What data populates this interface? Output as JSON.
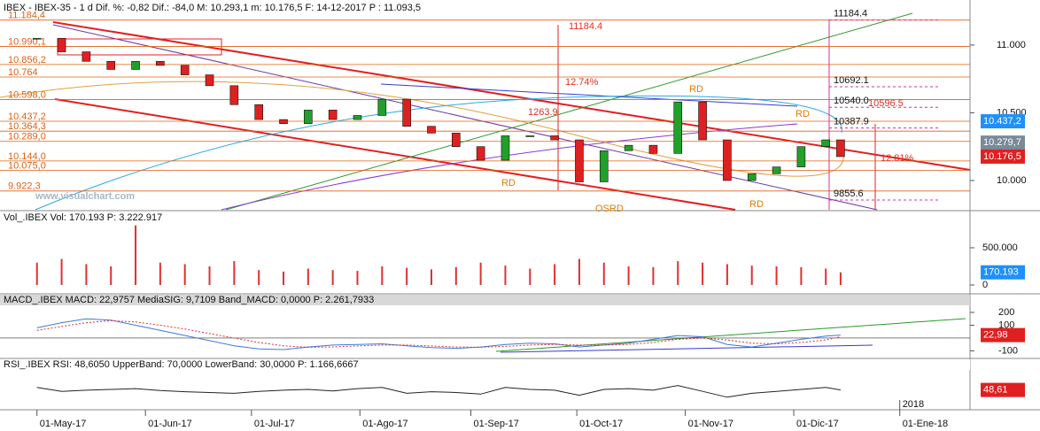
{
  "chart_data": {
    "type": "candlestick",
    "title": "IBEX - IBEX-35 -  1 d Dif. %: -0,82 Dif.: -84,0 M: 10.293,1 m: 10.176,5 F: 14-12-2017 P : 11.093,5",
    "x": [
      0,
      1,
      2,
      3,
      4,
      5,
      6,
      7,
      8,
      9,
      10,
      11,
      12,
      13,
      14,
      15,
      16,
      17,
      18,
      19,
      20,
      21,
      22,
      23,
      24,
      25,
      26,
      27,
      28,
      29,
      30,
      31,
      32,
      32.6
    ],
    "close": [
      11050,
      10950,
      10880,
      10820,
      10880,
      10850,
      10780,
      10700,
      10560,
      10450,
      10420,
      10520,
      10450,
      10480,
      10600,
      10400,
      10350,
      10250,
      10150,
      10330,
      10330,
      10300,
      9990,
      10220,
      10260,
      10200,
      10580,
      10300,
      10000,
      10050,
      10100,
      10250,
      10300,
      10176.5
    ],
    "up_color": "#22a02a",
    "down_color": "#e02020",
    "xlim": [
      -1.5,
      37.85
    ],
    "xticks": [
      {
        "value": 0,
        "label": "01-May-17"
      },
      {
        "value": 4.4,
        "label": "01-Jun-17"
      },
      {
        "value": 8.7,
        "label": "01-Jul-17"
      },
      {
        "value": 13.1,
        "label": "01-Ago-17"
      },
      {
        "value": 17.6,
        "label": "01-Sep-17"
      },
      {
        "value": 21.9,
        "label": "01-Oct-17"
      },
      {
        "value": 26.3,
        "label": "01-Nov-17"
      },
      {
        "value": 30.7,
        "label": "01-Dic-17"
      },
      {
        "value": 35,
        "label": "01-Ene-18"
      }
    ],
    "year_label": {
      "value": 35,
      "label": "2018"
    },
    "ylim": [
      9784,
      11215
    ],
    "yticks": [
      {
        "value": 11000,
        "label": "11.000"
      },
      {
        "value": 10500,
        "label": "10.500"
      },
      {
        "value": 10000,
        "label": "10.000"
      }
    ],
    "levels": [
      {
        "value": 11184.4,
        "label": "11.184,4"
      },
      {
        "value": 10990.1,
        "label": "10.990,1"
      },
      {
        "value": 10856.2,
        "label": "10.856,2"
      },
      {
        "value": 10764,
        "label": "10.764"
      },
      {
        "value": 10598,
        "label": "10.598,0"
      },
      {
        "value": 10437.2,
        "label": "10.437,2"
      },
      {
        "value": 10364.3,
        "label": "10.364,3"
      },
      {
        "value": 10289,
        "label": "10.289,0"
      },
      {
        "value": 10144,
        "label": "10.144,0"
      },
      {
        "value": 10075,
        "label": "10.075,0"
      },
      {
        "value": 9922.3,
        "label": "9.922,3"
      }
    ],
    "level_color": "#e06010",
    "right_levels": [
      {
        "value": 11184.4,
        "label": "11184.4"
      },
      {
        "value": 10692.1,
        "label": "10692.1"
      },
      {
        "value": 10540,
        "label": "10540.0"
      },
      {
        "value": 10387.9,
        "label": "10387.9"
      },
      {
        "value": 9855.6,
        "label": "9855.6"
      }
    ],
    "badges": [
      {
        "value": 10437.2,
        "label": "10.437,2",
        "color": "#1e90ff"
      },
      {
        "value": 10279.7,
        "label": "10.279,7",
        "color": "#7a8a99"
      },
      {
        "value": 10176.5,
        "label": "10.176,5",
        "color": "#e02020"
      }
    ],
    "annotations": [
      "RD",
      "RD",
      "RD",
      "RD",
      "OSRD",
      "12.74%",
      "1263.9",
      "12.81%",
      "11184.4",
      "10596.5",
      "www.visualchart.com"
    ],
    "volume": {
      "title": "Vol_.IBEX Vol: 170.193 P: 3.222.917",
      "values": [
        300000,
        350000,
        280000,
        250000,
        800000,
        300000,
        280000,
        250000,
        320000,
        200000,
        180000,
        220000,
        200000,
        190000,
        250000,
        230000,
        210000,
        240000,
        300000,
        260000,
        220000,
        280000,
        350000,
        300000,
        250000,
        240000,
        320000,
        300000,
        280000,
        260000,
        250000,
        240000,
        220000,
        170193
      ],
      "color": "#e03030",
      "ylim": [
        -95000,
        797000
      ],
      "yticks": [
        0,
        {
          "value": 500000,
          "label": "500.000"
        }
      ],
      "badge": {
        "value": 170193,
        "label": "170.193",
        "color": "#1e90ff"
      }
    },
    "macd": {
      "title": "MACD_.IBEX MACD: 22,9757 MediaSIG: 9,7109 Band_MACD: 0,0000 P: 2.261,7933",
      "series": [
        {
          "name": "MACD",
          "color": "#3a7bd5",
          "values": [
            80,
            120,
            150,
            140,
            100,
            60,
            20,
            -20,
            -60,
            -85,
            -90,
            -70,
            -55,
            -50,
            -45,
            -60,
            -75,
            -80,
            -70,
            -50,
            -40,
            -45,
            -70,
            -55,
            -40,
            -10,
            20,
            10,
            -50,
            -70,
            -40,
            -10,
            15,
            22.98
          ]
        },
        {
          "name": "MediaSIG",
          "color": "#e03030",
          "values": [
            60,
            90,
            120,
            135,
            125,
            100,
            70,
            35,
            0,
            -35,
            -60,
            -72,
            -70,
            -62,
            -55,
            -55,
            -62,
            -70,
            -72,
            -65,
            -55,
            -50,
            -55,
            -55,
            -50,
            -35,
            -10,
            0,
            -15,
            -40,
            -45,
            -35,
            -15,
            9.71
          ]
        }
      ],
      "ylim": [
        -159,
        255
      ],
      "yticks": [
        200,
        100,
        -100
      ],
      "badge": {
        "value": 22.98,
        "label": "22,98",
        "color": "#e02020"
      }
    },
    "rsi": {
      "title": "RSI_.IBEX RSI: 48,6050 UpperBand: 70,0000 LowerBand: 30,0000 P: 1.166,6667",
      "values": [
        55,
        45,
        48,
        50,
        52,
        47,
        44,
        42,
        40,
        45,
        48,
        50,
        46,
        52,
        55,
        40,
        44,
        42,
        38,
        55,
        50,
        48,
        35,
        50,
        52,
        48,
        60,
        45,
        30,
        40,
        45,
        50,
        55,
        48.61
      ],
      "color": "#222",
      "ylim": [
        0,
        100
      ],
      "badge": {
        "value": 48.61,
        "label": "48,61",
        "color": "#e02020"
      }
    }
  }
}
